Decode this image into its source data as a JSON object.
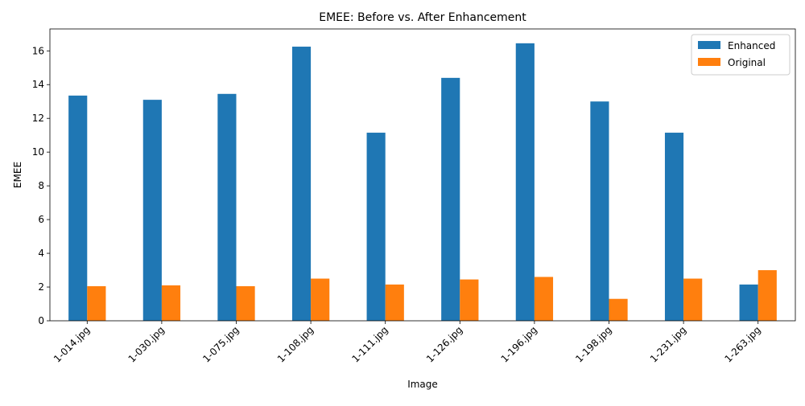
{
  "chart_data": {
    "type": "bar",
    "title": "EMEE: Before vs. After Enhancement",
    "xlabel": "Image",
    "ylabel": "EMEE",
    "categories": [
      "1-014.jpg",
      "1-030.jpg",
      "1-075.jpg",
      "1-108.jpg",
      "1-111.jpg",
      "1-126.jpg",
      "1-196.jpg",
      "1-198.jpg",
      "1-231.jpg",
      "1-263.jpg"
    ],
    "series": [
      {
        "name": "Enhanced",
        "color": "#1f77b4",
        "values": [
          13.35,
          13.1,
          13.45,
          16.25,
          11.15,
          14.4,
          16.45,
          13.0,
          11.15,
          2.15
        ]
      },
      {
        "name": "Original",
        "color": "#ff7f0e",
        "values": [
          2.05,
          2.1,
          2.05,
          2.5,
          2.15,
          2.45,
          2.6,
          1.3,
          2.5,
          3.0
        ]
      }
    ],
    "ylim": [
      0,
      17.3
    ],
    "yticks": [
      0,
      2,
      4,
      6,
      8,
      10,
      12,
      14,
      16
    ],
    "legend_position": "top-right",
    "grid": false
  }
}
